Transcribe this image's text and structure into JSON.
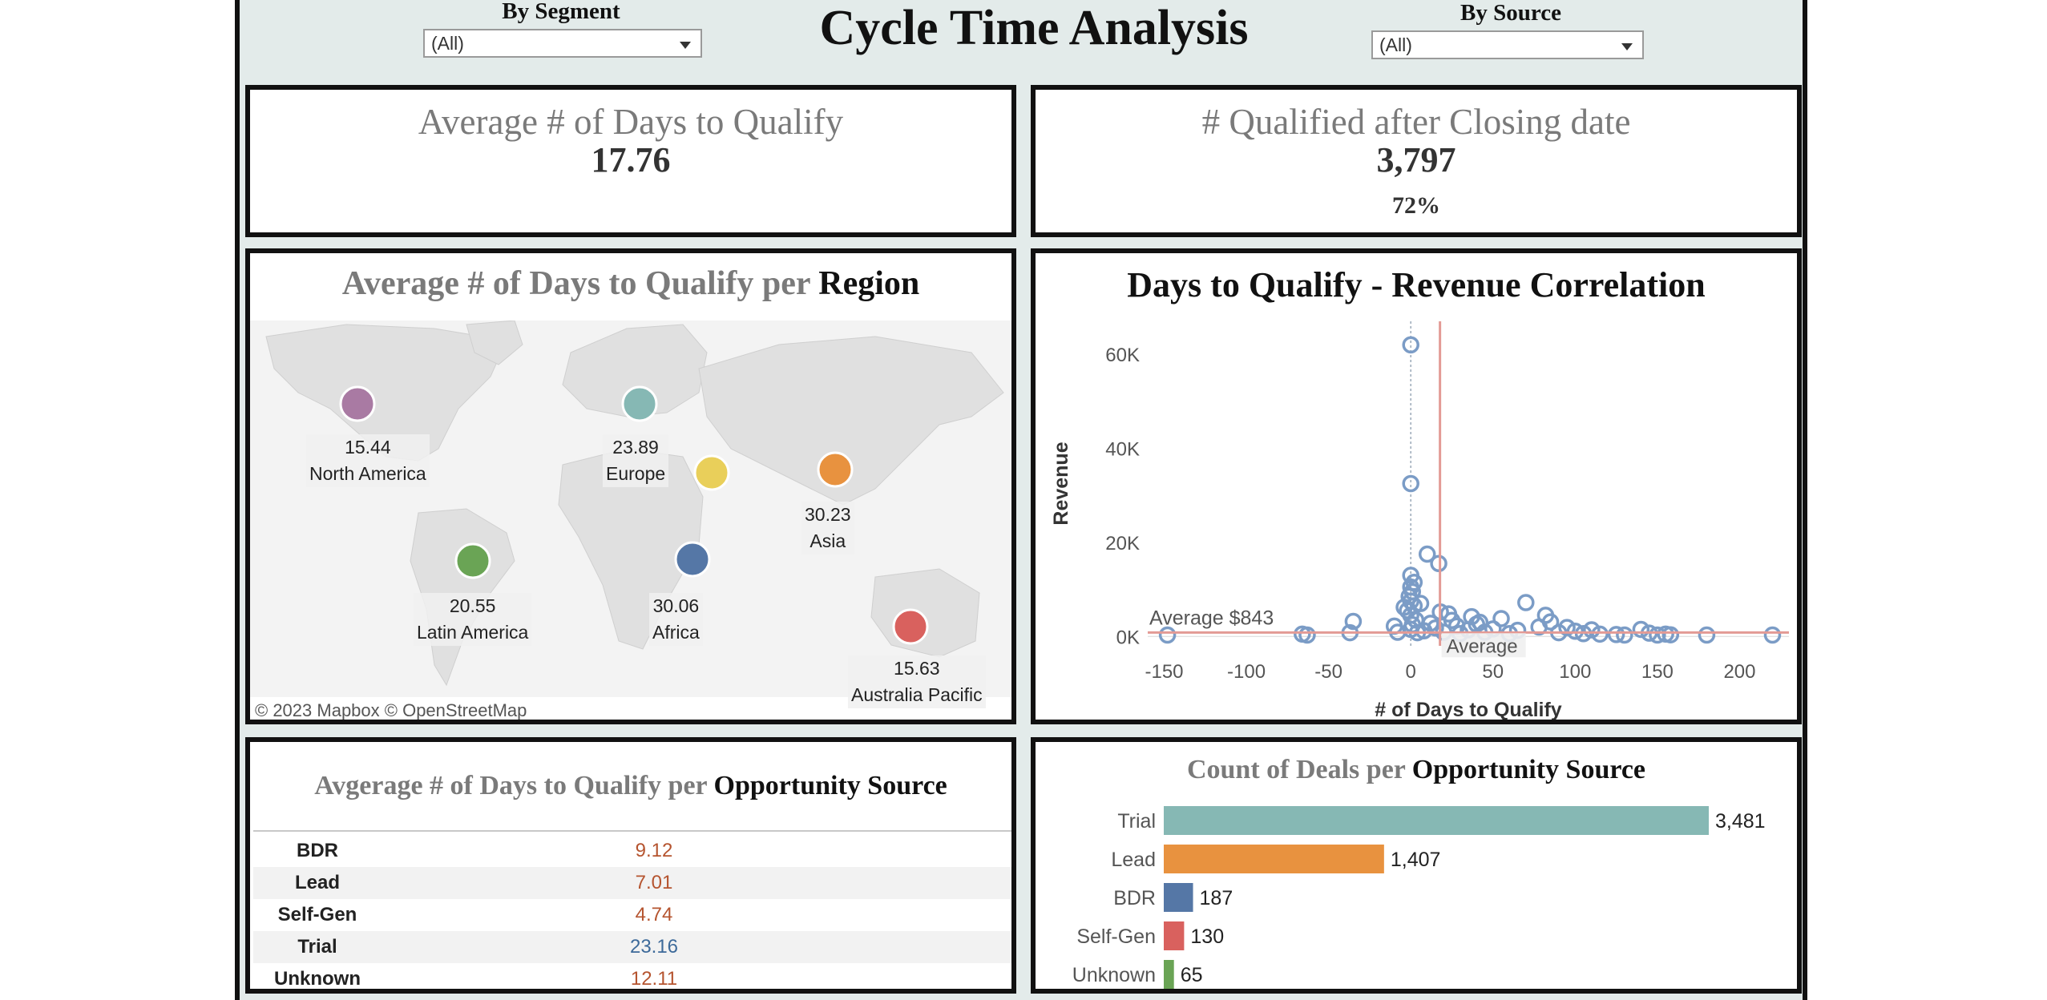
{
  "title": "Cycle Time Analysis",
  "filters": {
    "segment": {
      "label": "By Segment",
      "value": "(All)"
    },
    "source": {
      "label": "By Source",
      "value": "(All)"
    }
  },
  "kpi": {
    "avg_days": {
      "title": "Average # of Days to Qualify",
      "value": "17.76"
    },
    "qualified_after": {
      "title": "# Qualified after Closing date",
      "value": "3,797",
      "pct": "72%"
    }
  },
  "map": {
    "title_prefix": "Average # of Days to Qualify per",
    "title_emph": "Region",
    "attribution": "© 2023 Mapbox  © OpenStreetMap",
    "regions": [
      {
        "name": "North America",
        "value": "15.44",
        "color": "#a97aa3"
      },
      {
        "name": "Europe",
        "value": "23.89",
        "color": "#86b8b4"
      },
      {
        "name": "Asia",
        "value": "30.23",
        "color": "#e8923f"
      },
      {
        "name": "Latin America",
        "value": "20.55",
        "color": "#6aa455"
      },
      {
        "name": "Africa",
        "value": "30.06",
        "color": "#5577a6"
      },
      {
        "name": "Australia Pacific",
        "value": "15.63",
        "color": "#d9615e"
      },
      {
        "name": "",
        "value": "",
        "color": "#e9cf5a"
      }
    ]
  },
  "table": {
    "title_prefix": "Avgerage # of Days to Qualify per",
    "title_emph": "Opportunity Source",
    "rows": [
      {
        "source": "BDR",
        "value": "9.12",
        "color": "#b5542f"
      },
      {
        "source": "Lead",
        "value": "7.01",
        "color": "#b5542f"
      },
      {
        "source": "Self-Gen",
        "value": "4.74",
        "color": "#b5542f"
      },
      {
        "source": "Trial",
        "value": "23.16",
        "color": "#3d6a9a"
      },
      {
        "source": "Unknown",
        "value": "12.11",
        "color": "#b5542f"
      }
    ]
  },
  "chart_data": [
    {
      "type": "scatter",
      "title": "Days to Qualify - Revenue Correlation",
      "xlabel": "# of Days to Qualify",
      "ylabel": "Revenue",
      "xlim": [
        -160,
        230
      ],
      "ylim": [
        -2000,
        67000
      ],
      "x_ticks": [
        -150,
        -100,
        -50,
        0,
        50,
        100,
        150,
        200
      ],
      "y_ticks": [
        0,
        20000,
        40000,
        60000
      ],
      "y_tick_labels": [
        "0K",
        "20K",
        "40K",
        "60K"
      ],
      "reference_lines": {
        "y_average": 843,
        "y_label": "Average $843",
        "x_average": 17.76,
        "x_label": "Average"
      },
      "point_color": "#7b9cc6",
      "points": [
        [
          0,
          62000
        ],
        [
          0,
          32500
        ],
        [
          10,
          17500
        ],
        [
          17,
          15500
        ],
        [
          -148,
          300
        ],
        [
          -63,
          300
        ],
        [
          -66,
          500
        ],
        [
          -35,
          3200
        ],
        [
          -37,
          800
        ],
        [
          -8,
          900
        ],
        [
          -10,
          2200
        ],
        [
          0,
          13000
        ],
        [
          2,
          11500
        ],
        [
          0,
          10500
        ],
        [
          1,
          9500
        ],
        [
          -1,
          8500
        ],
        [
          0,
          7500
        ],
        [
          2,
          6500
        ],
        [
          -2,
          5500
        ],
        [
          0,
          4500
        ],
        [
          3,
          3500
        ],
        [
          1,
          2500
        ],
        [
          0,
          1500
        ],
        [
          4,
          800
        ],
        [
          8,
          1200
        ],
        [
          12,
          2800
        ],
        [
          15,
          1800
        ],
        [
          20,
          900
        ],
        [
          23,
          4800
        ],
        [
          28,
          2200
        ],
        [
          35,
          1400
        ],
        [
          37,
          4200
        ],
        [
          42,
          3000
        ],
        [
          45,
          900
        ],
        [
          50,
          1600
        ],
        [
          55,
          3800
        ],
        [
          60,
          600
        ],
        [
          65,
          1300
        ],
        [
          70,
          7200
        ],
        [
          78,
          2000
        ],
        [
          82,
          4500
        ],
        [
          85,
          3100
        ],
        [
          90,
          800
        ],
        [
          95,
          1900
        ],
        [
          100,
          1100
        ],
        [
          105,
          600
        ],
        [
          110,
          1400
        ],
        [
          115,
          500
        ],
        [
          125,
          400
        ],
        [
          130,
          300
        ],
        [
          140,
          1500
        ],
        [
          145,
          700
        ],
        [
          150,
          300
        ],
        [
          155,
          500
        ],
        [
          158,
          350
        ],
        [
          180,
          300
        ],
        [
          220,
          300
        ],
        [
          30,
          600
        ],
        [
          40,
          2600
        ],
        [
          25,
          3400
        ],
        [
          18,
          5200
        ],
        [
          6,
          7000
        ],
        [
          -4,
          6200
        ]
      ]
    },
    {
      "type": "bar",
      "title": "Count of Deals per Opportunity Source",
      "orientation": "horizontal",
      "categories": [
        "Trial",
        "Lead",
        "BDR",
        "Self-Gen",
        "Unknown"
      ],
      "values": [
        3481,
        1407,
        187,
        130,
        65
      ],
      "value_labels": [
        "3,481",
        "1,407",
        "187",
        "130",
        "65"
      ],
      "colors": [
        "#86b8b4",
        "#e8923f",
        "#5577a6",
        "#d9615e",
        "#6aa455"
      ]
    }
  ]
}
